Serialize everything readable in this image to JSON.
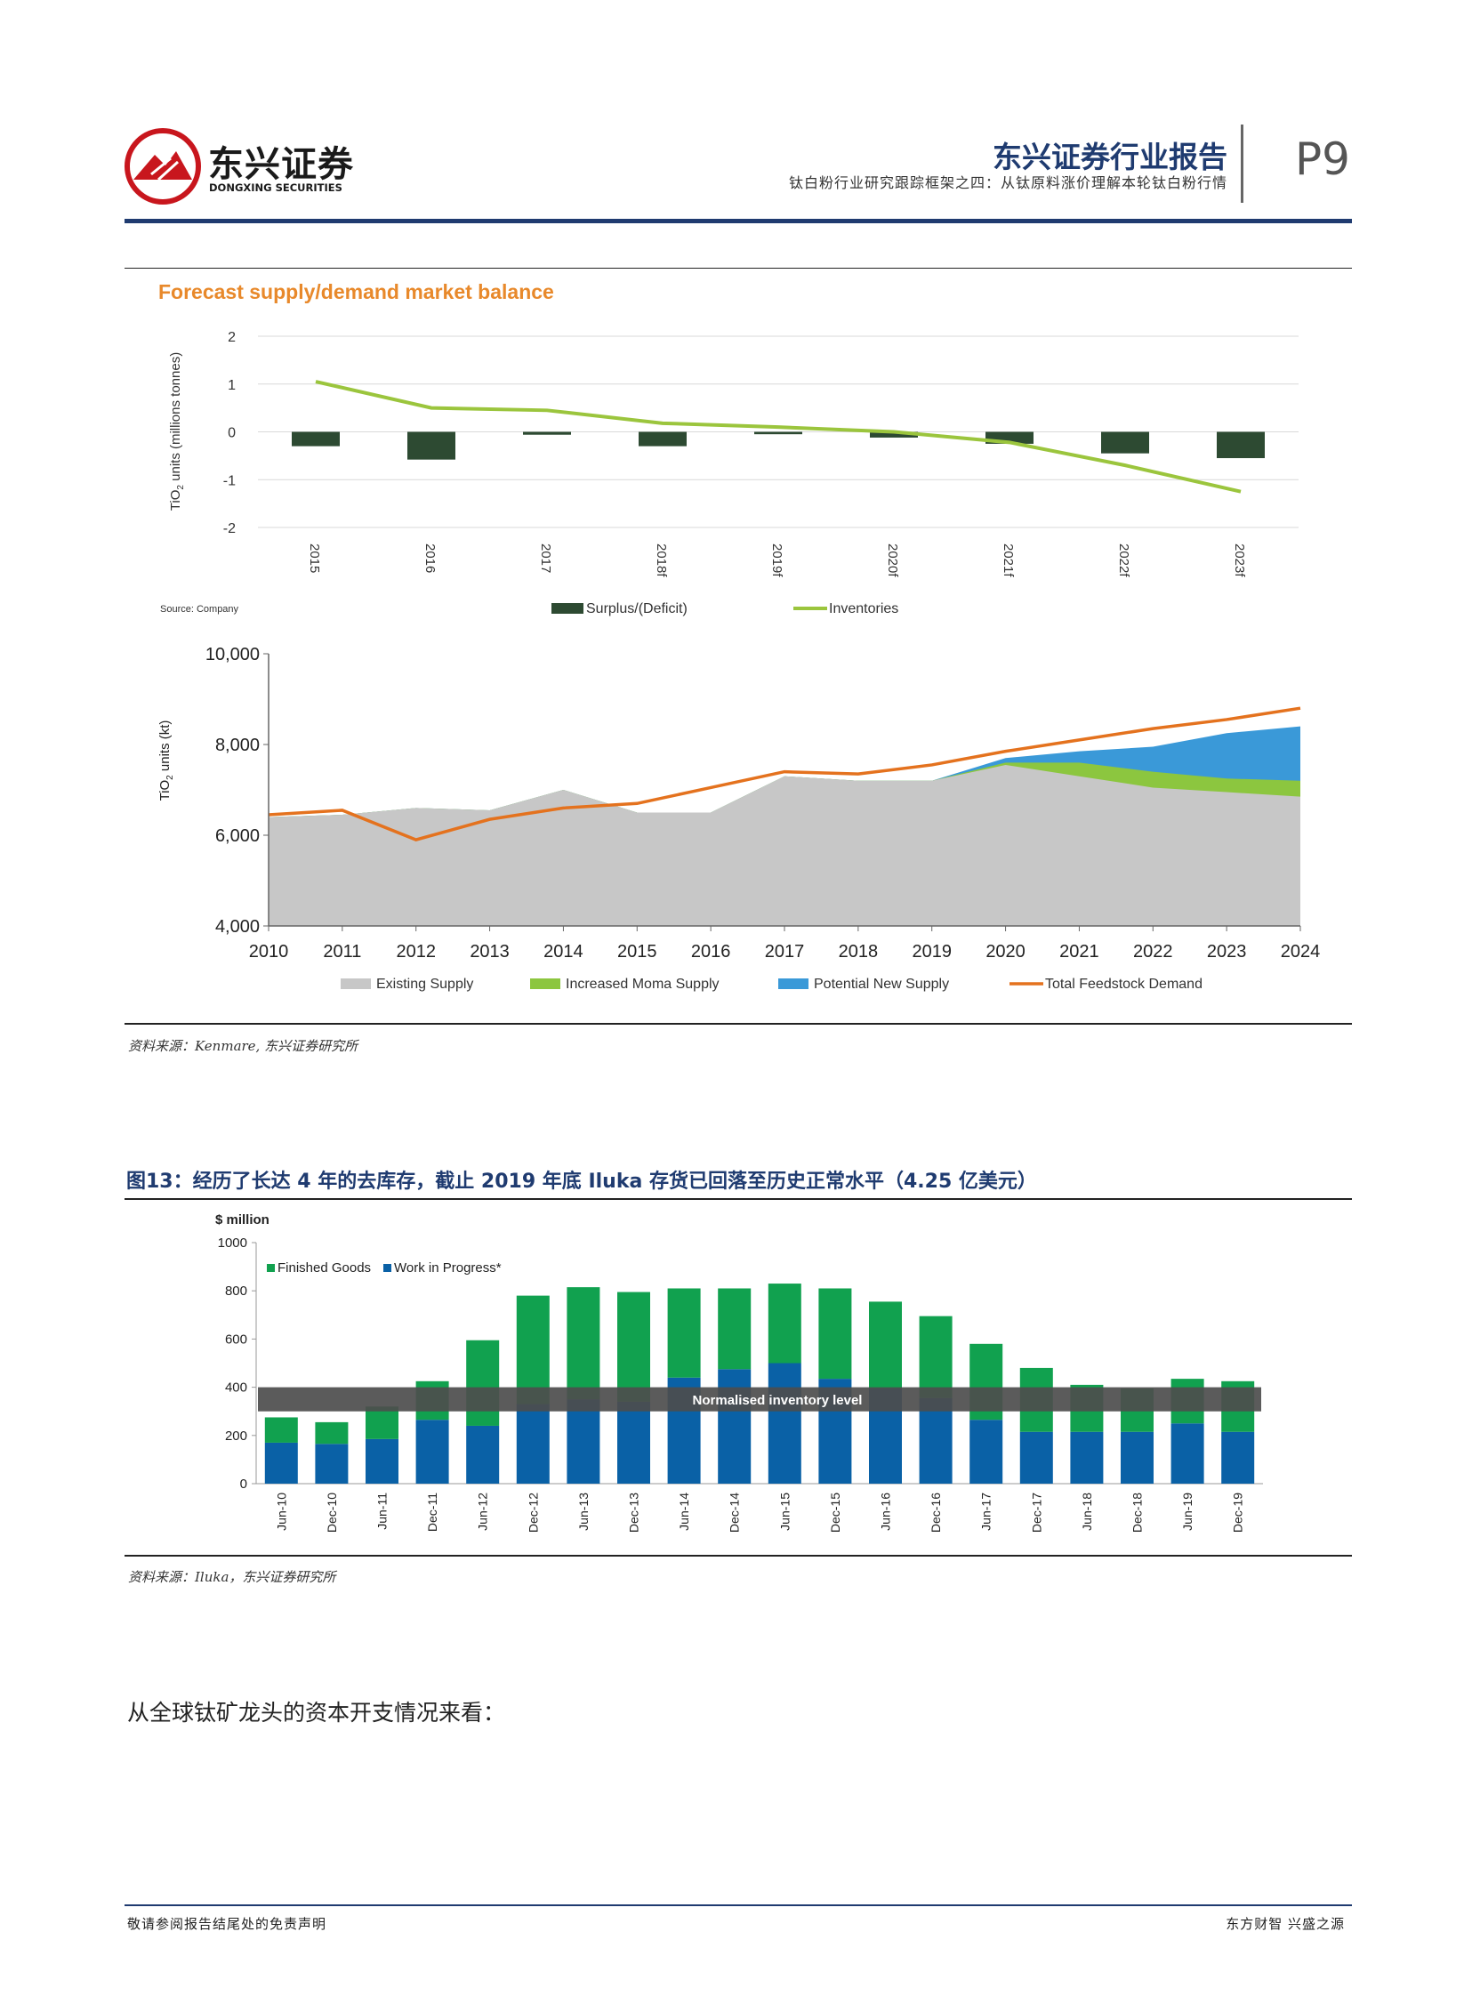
{
  "header": {
    "logo_cn": "东兴证券",
    "logo_en": "DONGXING SECURITIES",
    "report_title": "东兴证券行业报告",
    "subtitle": "钛白粉行业研究跟踪框架之四：从钛原料涨价理解本轮钛白粉行情",
    "page_number": "P9"
  },
  "figure12": {
    "source": "资料来源：Kenmare, 东兴证券研究所",
    "chart_top": {
      "type": "bar",
      "title": "Forecast supply/demand market balance",
      "ylabel": "TiO2 units (millions tonnes)",
      "source_note": "Source: Company",
      "categories": [
        "2015",
        "2016",
        "2017",
        "2018f",
        "2019f",
        "2020f",
        "2021f",
        "2022f",
        "2023f"
      ],
      "yticks": [
        "2",
        "1",
        "0",
        "-1",
        "-2"
      ],
      "ylim": [
        -2,
        2
      ],
      "series": [
        {
          "name": "Surplus/(Deficit)",
          "type": "bar",
          "values": [
            -0.3,
            -0.58,
            -0.06,
            -0.3,
            -0.05,
            -0.12,
            -0.25,
            -0.45,
            -0.55
          ]
        },
        {
          "name": "Inventories",
          "type": "line",
          "values": [
            1.05,
            0.5,
            0.45,
            0.18,
            0.1,
            0.0,
            -0.22,
            -0.7,
            -1.25
          ]
        }
      ],
      "colors": {
        "bar": "#2d4a32",
        "line": "#9bc53d",
        "title": "#e8892b"
      }
    },
    "chart_bottom": {
      "type": "area",
      "ylabel": "TiO2 units (kt)",
      "x": [
        "2010",
        "2011",
        "2012",
        "2013",
        "2014",
        "2015",
        "2016",
        "2017",
        "2018",
        "2019",
        "2020",
        "2021",
        "2022",
        "2023",
        "2024"
      ],
      "yticks": [
        "10,000",
        "8,000",
        "6,000",
        "4,000"
      ],
      "ylim": [
        4000,
        10000
      ],
      "series": [
        {
          "name": "Existing Supply",
          "values": [
            6400,
            6450,
            6600,
            6550,
            7000,
            6500,
            6500,
            7300,
            7200,
            7200,
            7550,
            7300,
            7050,
            6950,
            6850
          ]
        },
        {
          "name": "Increased Moma Supply",
          "values": [
            6400,
            6450,
            6600,
            6550,
            7000,
            6500,
            6500,
            7300,
            7200,
            7200,
            7600,
            7600,
            7400,
            7250,
            7200
          ]
        },
        {
          "name": "Potential New Supply",
          "values": [
            6400,
            6450,
            6600,
            6550,
            7000,
            6500,
            6500,
            7300,
            7200,
            7200,
            7700,
            7850,
            7950,
            8250,
            8400
          ]
        },
        {
          "name": "Total Feedstock Demand",
          "values": [
            6450,
            6550,
            5900,
            6350,
            6600,
            6700,
            7050,
            7400,
            7350,
            7550,
            7850,
            8100,
            8350,
            8550,
            8800
          ]
        }
      ],
      "colors": {
        "existing": "#c7c7c7",
        "moma": "#8cc63f",
        "potential": "#3a99d8",
        "demand": "#e4721e"
      }
    }
  },
  "figure13": {
    "title": "图13：经历了长达 4 年的去库存，截止 2019 年底 Iluka 存货已回落至历史正常水平（4.25 亿美元）",
    "source": "资料来源：Iluka，东兴证券研究所",
    "chart": {
      "type": "bar",
      "ylabel": "$ million",
      "categories": [
        "Jun-10",
        "Dec-10",
        "Jun-11",
        "Dec-11",
        "Jun-12",
        "Dec-12",
        "Jun-13",
        "Dec-13",
        "Jun-14",
        "Dec-14",
        "Jun-15",
        "Dec-15",
        "Jun-16",
        "Dec-16",
        "Jun-17",
        "Dec-17",
        "Jun-18",
        "Dec-18",
        "Jun-19",
        "Dec-19"
      ],
      "yticks": [
        "1000",
        "800",
        "600",
        "400",
        "200",
        "0"
      ],
      "ylim": [
        0,
        1000
      ],
      "series": [
        {
          "name": "Work in Progress*",
          "values": [
            170,
            165,
            185,
            265,
            240,
            330,
            350,
            340,
            440,
            475,
            500,
            435,
            395,
            355,
            265,
            215,
            215,
            215,
            250,
            215
          ]
        },
        {
          "name": "Finished Goods",
          "values": [
            105,
            90,
            135,
            160,
            355,
            450,
            465,
            455,
            370,
            335,
            330,
            375,
            360,
            340,
            315,
            265,
            195,
            180,
            185,
            210
          ]
        }
      ],
      "legend_text": {
        "fg": "Finished Goods",
        "wip": "Work in Progress*"
      },
      "band_label": "Normalised inventory level",
      "band_range": [
        300,
        400
      ],
      "colors": {
        "fg": "#11a14f",
        "wip": "#0a61a6",
        "band": "#4d4d4d"
      }
    }
  },
  "body_text": "从全球钛矿龙头的资本开支情况来看：",
  "footer": {
    "left": "敬请参阅报告结尾处的免责声明",
    "right": "东方财智 兴盛之源"
  }
}
